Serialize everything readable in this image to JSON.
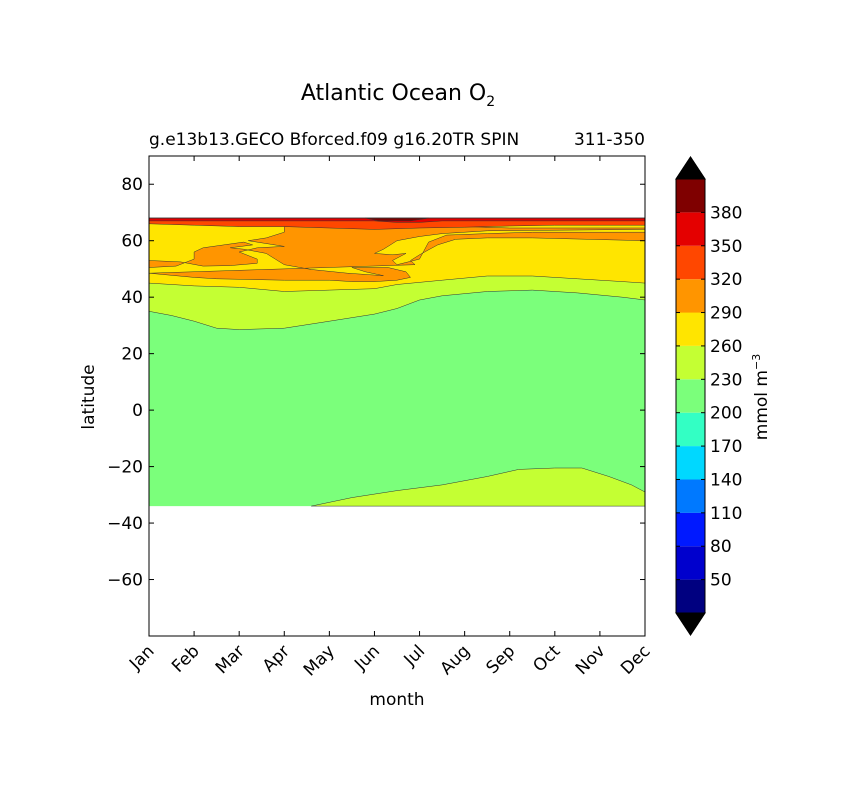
{
  "chart_data": {
    "type": "contourf",
    "title_main": "Atlantic Ocean O",
    "title_sub": "2",
    "subtitle_left": "g.e13b13.GECO Bforced.f09 g16.20TR SPIN",
    "subtitle_right": "311-350",
    "xlabel": "month",
    "ylabel": "latitude",
    "x_categories": [
      "Jan",
      "Feb",
      "Mar",
      "Apr",
      "May",
      "Jun",
      "Jul",
      "Aug",
      "Sep",
      "Oct",
      "Nov",
      "Dec"
    ],
    "xlim": [
      0,
      11
    ],
    "ylim": [
      -80,
      90
    ],
    "y_ticks": [
      80,
      60,
      40,
      20,
      0,
      -20,
      -40,
      -60
    ],
    "colorbar": {
      "label": "mmol m",
      "label_exp": "−3",
      "levels": [
        20,
        50,
        80,
        110,
        140,
        170,
        200,
        230,
        260,
        290,
        320,
        350,
        380,
        410
      ],
      "tick_labels": [
        "50",
        "80",
        "110",
        "140",
        "170",
        "200",
        "230",
        "260",
        "290",
        "320",
        "350",
        "380"
      ],
      "colors": [
        "#000080",
        "#0000cd",
        "#0019ff",
        "#0079ff",
        "#00d8ff",
        "#33ffc4",
        "#7bff7b",
        "#c4ff33",
        "#ffe500",
        "#ff9500",
        "#ff4700",
        "#e40000",
        "#7f0000"
      ],
      "extend_low": "#000000",
      "extend_high": "#000000"
    },
    "domain_south_boundary_lat": -34,
    "regions": [
      {
        "name": "230-260 (south)",
        "color": "#c4ff33",
        "polygon": [
          [
            3.6,
            -34
          ],
          [
            4.5,
            -31
          ],
          [
            5.5,
            -28.5
          ],
          [
            6.5,
            -26.5
          ],
          [
            7.5,
            -23.5
          ],
          [
            8.2,
            -21
          ],
          [
            9.0,
            -20.5
          ],
          [
            9.6,
            -20.5
          ],
          [
            10.2,
            -23.5
          ],
          [
            10.7,
            -26.5
          ],
          [
            11,
            -29
          ],
          [
            11,
            -34
          ]
        ]
      },
      {
        "name": "200-230 (central)",
        "color": "#7bff7b",
        "boundary": [
          [
            0,
            35
          ],
          [
            0.5,
            33.5
          ],
          [
            1,
            31.5
          ],
          [
            1.5,
            29
          ],
          [
            2,
            28.5
          ],
          [
            3,
            29
          ],
          [
            4,
            31.5
          ],
          [
            5,
            34
          ],
          [
            5.5,
            36
          ],
          [
            6,
            39
          ],
          [
            6.5,
            40.5
          ],
          [
            7.5,
            42
          ],
          [
            8.5,
            42.5
          ],
          [
            9.5,
            41.5
          ],
          [
            10.5,
            40
          ],
          [
            11,
            39
          ]
        ]
      },
      {
        "name": "260-290",
        "color": "#ffe500",
        "boundary": [
          [
            0,
            45
          ],
          [
            1,
            44
          ],
          [
            2,
            43.5
          ],
          [
            3,
            42
          ],
          [
            4,
            42.5
          ],
          [
            5,
            43
          ],
          [
            5.5,
            44.5
          ],
          [
            6.5,
            46
          ],
          [
            7.5,
            47.5
          ],
          [
            8.5,
            47.5
          ],
          [
            9.5,
            46.5
          ],
          [
            10.5,
            45.5
          ],
          [
            11,
            45
          ]
        ]
      },
      {
        "name": "290-320",
        "color": "#ff9500",
        "polygon": [
          [
            0,
            48.5
          ],
          [
            1,
            47
          ],
          [
            1.5,
            46.5
          ],
          [
            3,
            46
          ],
          [
            4,
            46
          ],
          [
            4.5,
            45.5
          ],
          [
            5,
            45.5
          ],
          [
            5.5,
            46
          ],
          [
            5.8,
            47
          ],
          [
            5.7,
            49
          ],
          [
            5.3,
            50.5
          ],
          [
            4.5,
            50.5
          ],
          [
            4.8,
            49
          ],
          [
            5.2,
            47.6
          ],
          [
            4.4,
            48.5
          ],
          [
            3.6,
            49.8
          ],
          [
            3,
            51.5
          ],
          [
            2.8,
            53.5
          ],
          [
            2.6,
            55.5
          ],
          [
            2.1,
            57
          ],
          [
            1.8,
            57.5
          ],
          [
            2.3,
            58.5
          ],
          [
            2.1,
            59.5
          ],
          [
            1.2,
            57.5
          ],
          [
            1.0,
            56
          ],
          [
            1.0,
            53.5
          ],
          [
            0.6,
            51
          ],
          [
            0,
            50.5
          ],
          [
            0,
            53
          ],
          [
            0.7,
            52.5
          ],
          [
            1.2,
            51
          ],
          [
            1.8,
            51.2
          ],
          [
            2.4,
            52
          ],
          [
            2.4,
            53.5
          ],
          [
            2,
            56
          ],
          [
            2.4,
            57.5
          ],
          [
            3.0,
            58
          ],
          [
            2.2,
            60
          ],
          [
            2.6,
            61
          ],
          [
            3.0,
            63
          ],
          [
            3.0,
            65
          ],
          [
            7,
            65
          ],
          [
            8,
            64.5
          ],
          [
            11,
            64.5
          ],
          [
            11,
            64
          ],
          [
            7.5,
            63.5
          ],
          [
            6.5,
            62.5
          ],
          [
            6.0,
            61.5
          ],
          [
            5.5,
            60
          ],
          [
            5.2,
            57
          ],
          [
            5.0,
            55.5
          ],
          [
            5.4,
            55
          ],
          [
            5.7,
            55.5
          ],
          [
            5.4,
            53
          ],
          [
            5.5,
            51.5
          ],
          [
            6.0,
            53.5
          ],
          [
            6.2,
            59.5
          ],
          [
            6.6,
            62
          ],
          [
            7.5,
            62.5
          ],
          [
            8.5,
            63
          ],
          [
            11,
            63
          ],
          [
            11,
            60
          ],
          [
            8.5,
            61
          ],
          [
            7.5,
            61
          ],
          [
            6.8,
            60.5
          ],
          [
            6.4,
            58.5
          ],
          [
            6.0,
            55
          ],
          [
            5.8,
            53
          ],
          [
            5.9,
            51.5
          ]
        ]
      },
      {
        "name": "320-350",
        "color": "#ff4700",
        "boundary": [
          [
            0,
            66
          ],
          [
            1,
            65.5
          ],
          [
            2,
            65
          ],
          [
            3,
            65
          ],
          [
            4,
            64.5
          ],
          [
            5,
            64
          ],
          [
            6,
            64.5
          ],
          [
            7,
            64.8
          ],
          [
            8,
            65.2
          ],
          [
            9,
            65.5
          ],
          [
            10,
            65.5
          ],
          [
            11,
            65.5
          ]
        ]
      },
      {
        "name": "350-380",
        "color": "#e40000",
        "boundary": [
          [
            0,
            67
          ],
          [
            3,
            67
          ],
          [
            5,
            67
          ],
          [
            5.5,
            66.5
          ],
          [
            6,
            66.5
          ],
          [
            6.5,
            67
          ],
          [
            8,
            67
          ],
          [
            11,
            67
          ]
        ]
      },
      {
        "name": "380-410",
        "color": "#7f0000",
        "polygon": [
          [
            4.8,
            68
          ],
          [
            6.2,
            68
          ],
          [
            5.8,
            67
          ],
          [
            5.1,
            67
          ]
        ]
      }
    ],
    "data_top_lat": 68
  }
}
